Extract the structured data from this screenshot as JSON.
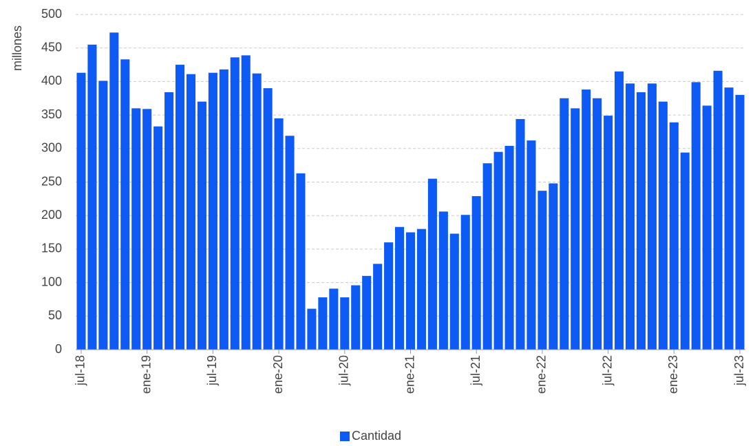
{
  "chart_data": {
    "type": "bar",
    "y_label": "millones",
    "categories": [
      "jul-18",
      null,
      null,
      null,
      null,
      null,
      "ene-19",
      null,
      null,
      null,
      null,
      null,
      "jul-19",
      null,
      null,
      null,
      null,
      null,
      "ene-20",
      null,
      null,
      null,
      null,
      null,
      "jul-20",
      null,
      null,
      null,
      null,
      null,
      "ene-21",
      null,
      null,
      null,
      null,
      null,
      "jul-21",
      null,
      null,
      null,
      null,
      null,
      "ene-22",
      null,
      null,
      null,
      null,
      null,
      "jul-22",
      null,
      null,
      null,
      null,
      null,
      "ene-23",
      null,
      null,
      null,
      null,
      null,
      "jul-23"
    ],
    "series": [
      {
        "name": "Cantidad",
        "color": "#0d5af5",
        "values": [
          413,
          455,
          401,
          473,
          433,
          360,
          359,
          333,
          384,
          425,
          411,
          370,
          413,
          418,
          436,
          439,
          412,
          390,
          345,
          319,
          263,
          61,
          78,
          91,
          78,
          96,
          110,
          128,
          160,
          183,
          175,
          180,
          255,
          206,
          173,
          201,
          229,
          278,
          295,
          304,
          344,
          312,
          237,
          248,
          375,
          360,
          388,
          375,
          349,
          415,
          397,
          384,
          397,
          370,
          339,
          294,
          399,
          364,
          416,
          391,
          380
        ]
      }
    ],
    "ylim": [
      0,
      500
    ],
    "yticks": [
      0,
      50,
      100,
      150,
      200,
      250,
      300,
      350,
      400,
      450,
      500
    ],
    "grid": true,
    "legend": "bottom"
  }
}
